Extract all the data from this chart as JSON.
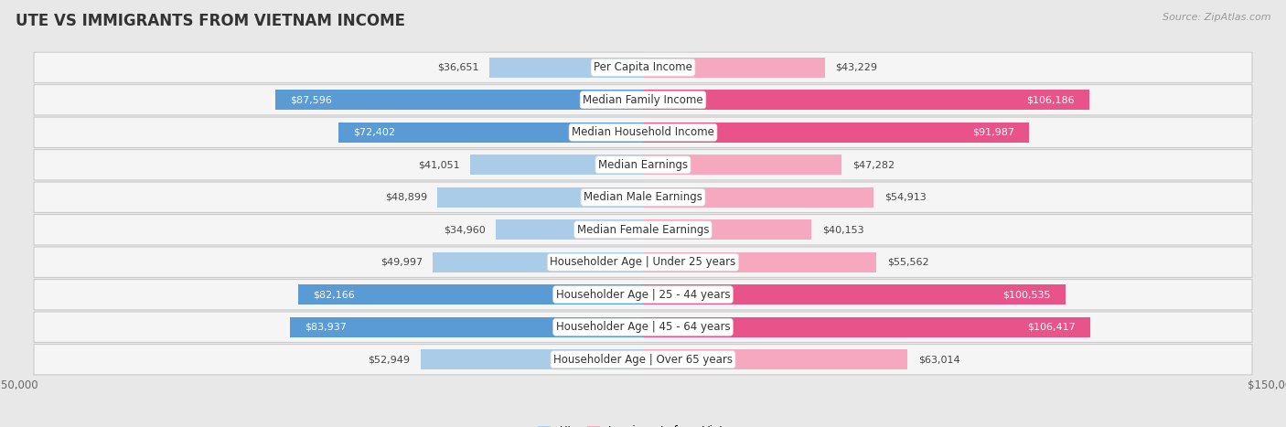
{
  "title": "UTE VS IMMIGRANTS FROM VIETNAM INCOME",
  "source": "Source: ZipAtlas.com",
  "categories": [
    "Per Capita Income",
    "Median Family Income",
    "Median Household Income",
    "Median Earnings",
    "Median Male Earnings",
    "Median Female Earnings",
    "Householder Age | Under 25 years",
    "Householder Age | 25 - 44 years",
    "Householder Age | 45 - 64 years",
    "Householder Age | Over 65 years"
  ],
  "ute_values": [
    36651,
    87596,
    72402,
    41051,
    48899,
    34960,
    49997,
    82166,
    83937,
    52949
  ],
  "vietnam_values": [
    43229,
    106186,
    91987,
    47282,
    54913,
    40153,
    55562,
    100535,
    106417,
    63014
  ],
  "ute_color_light": "#aacce8",
  "ute_color_dark": "#5b9bd5",
  "vietnam_color_light": "#f5a8c0",
  "vietnam_color_dark": "#e8538a",
  "max_value": 150000,
  "bar_height": 0.62,
  "bg_color": "#e8e8e8",
  "row_bg_color": "#f5f5f5",
  "label_fontsize": 8.5,
  "title_fontsize": 12,
  "value_fontsize": 8.0,
  "dark_threshold": 65000,
  "inside_label_threshold": 65000
}
